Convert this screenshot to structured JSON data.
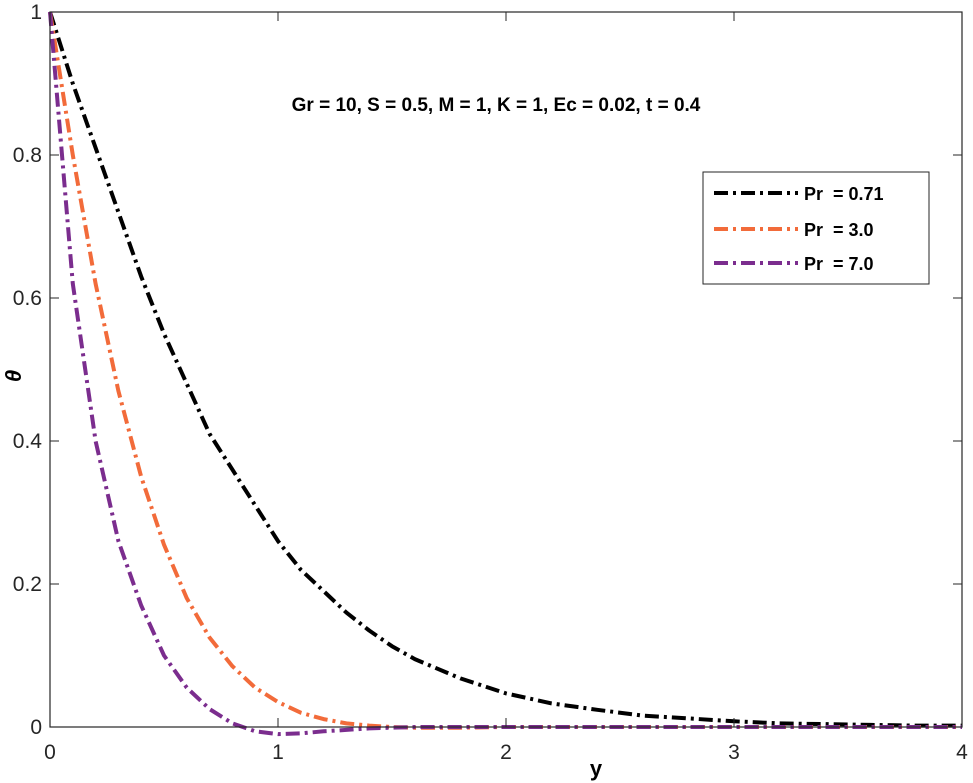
{
  "chart_data": {
    "type": "line",
    "title": "",
    "xlabel": "y",
    "ylabel": "θ",
    "xlim": [
      0,
      4
    ],
    "ylim": [
      0,
      1
    ],
    "xticks": [
      "0",
      "1",
      "2",
      "3",
      "4"
    ],
    "yticks": [
      "0",
      "0.2",
      "0.4",
      "0.6",
      "0.8",
      "1"
    ],
    "annotation": "Gr = 10, S = 0.5, M = 1,  K = 1, Ec = 0.02, t = 0.4",
    "legend_position": "top-right",
    "grid": false,
    "x": [
      0,
      0.1,
      0.2,
      0.3,
      0.4,
      0.5,
      0.6,
      0.7,
      0.8,
      0.9,
      1.0,
      1.1,
      1.2,
      1.3,
      1.4,
      1.5,
      1.6,
      1.8,
      2.0,
      2.2,
      2.4,
      2.6,
      2.8,
      3.0,
      3.2,
      3.4,
      3.6,
      3.8,
      4.0
    ],
    "series": [
      {
        "name": "Pr  = 0.71",
        "color": "#000000",
        "values": [
          1.0,
          0.9,
          0.81,
          0.72,
          0.63,
          0.55,
          0.48,
          0.41,
          0.36,
          0.31,
          0.26,
          0.22,
          0.19,
          0.16,
          0.135,
          0.113,
          0.095,
          0.068,
          0.047,
          0.033,
          0.024,
          0.016,
          0.012,
          0.008,
          0.005,
          0.004,
          0.003,
          0.002,
          0.002
        ]
      },
      {
        "name": "Pr  = 3.0",
        "color": "#f26b3a",
        "values": [
          1.0,
          0.8,
          0.62,
          0.47,
          0.35,
          0.255,
          0.18,
          0.125,
          0.085,
          0.055,
          0.035,
          0.02,
          0.011,
          0.005,
          0.002,
          0.0,
          -0.001,
          -0.001,
          0.0,
          0.0,
          0.0,
          0.0,
          0.0,
          0.0,
          0.0,
          0.0,
          0.0,
          0.0,
          0.0
        ]
      },
      {
        "name": "Pr  = 7.0",
        "color": "#7b2d8e",
        "values": [
          1.0,
          0.62,
          0.4,
          0.26,
          0.17,
          0.1,
          0.055,
          0.025,
          0.005,
          -0.006,
          -0.01,
          -0.009,
          -0.006,
          -0.004,
          -0.002,
          -0.001,
          0.0,
          0.0,
          0.0,
          0.0,
          0.0,
          0.0,
          0.0,
          0.0,
          0.0,
          0.0,
          0.0,
          0.0,
          0.0
        ]
      }
    ]
  }
}
